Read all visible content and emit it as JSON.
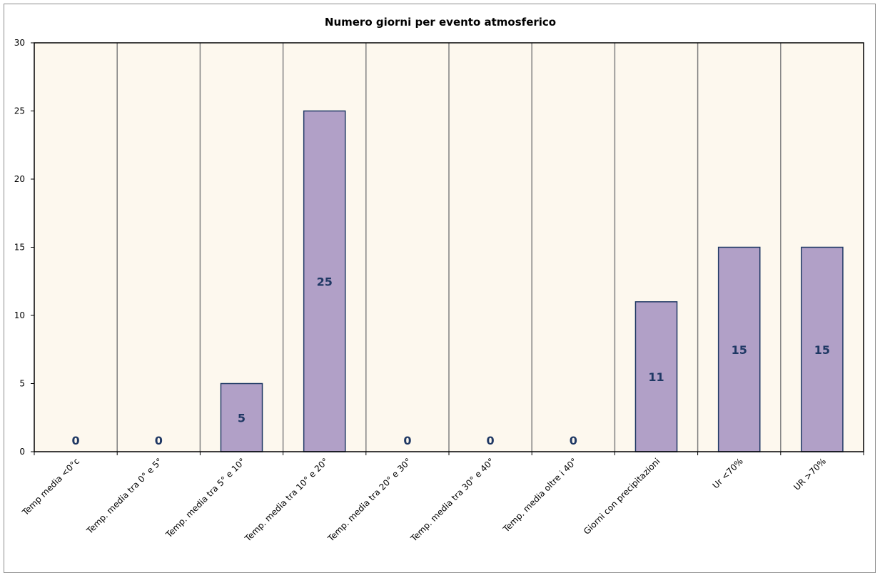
{
  "chart_data": {
    "type": "bar",
    "title": "Numero giorni  per evento atmosferico",
    "categories": [
      "Temp media <0°c",
      "Temp. media tra 0° e 5°",
      "Temp. media tra 5° e 10°",
      "Temp. media tra 10° e 20°",
      "Temp. media tra 20° e 30°",
      "Temp. media tra 30° e 40°",
      "Temp. media oltre i 40°",
      "Giorni con precipitazioni",
      "Ur  <70%",
      "UR >70%"
    ],
    "values": [
      0,
      0,
      5,
      25,
      0,
      0,
      0,
      11,
      15,
      15
    ],
    "ylim": [
      0,
      30
    ],
    "yticks": [
      0,
      5,
      10,
      15,
      20,
      25,
      30
    ],
    "grid": "vertical",
    "legend": "none",
    "colors": {
      "bar_fill": "#b1a0c7",
      "bar_stroke": "#1f3864",
      "plot_bg": "#fdf8ee",
      "grid": "#808080",
      "label": "#1f3864"
    }
  }
}
